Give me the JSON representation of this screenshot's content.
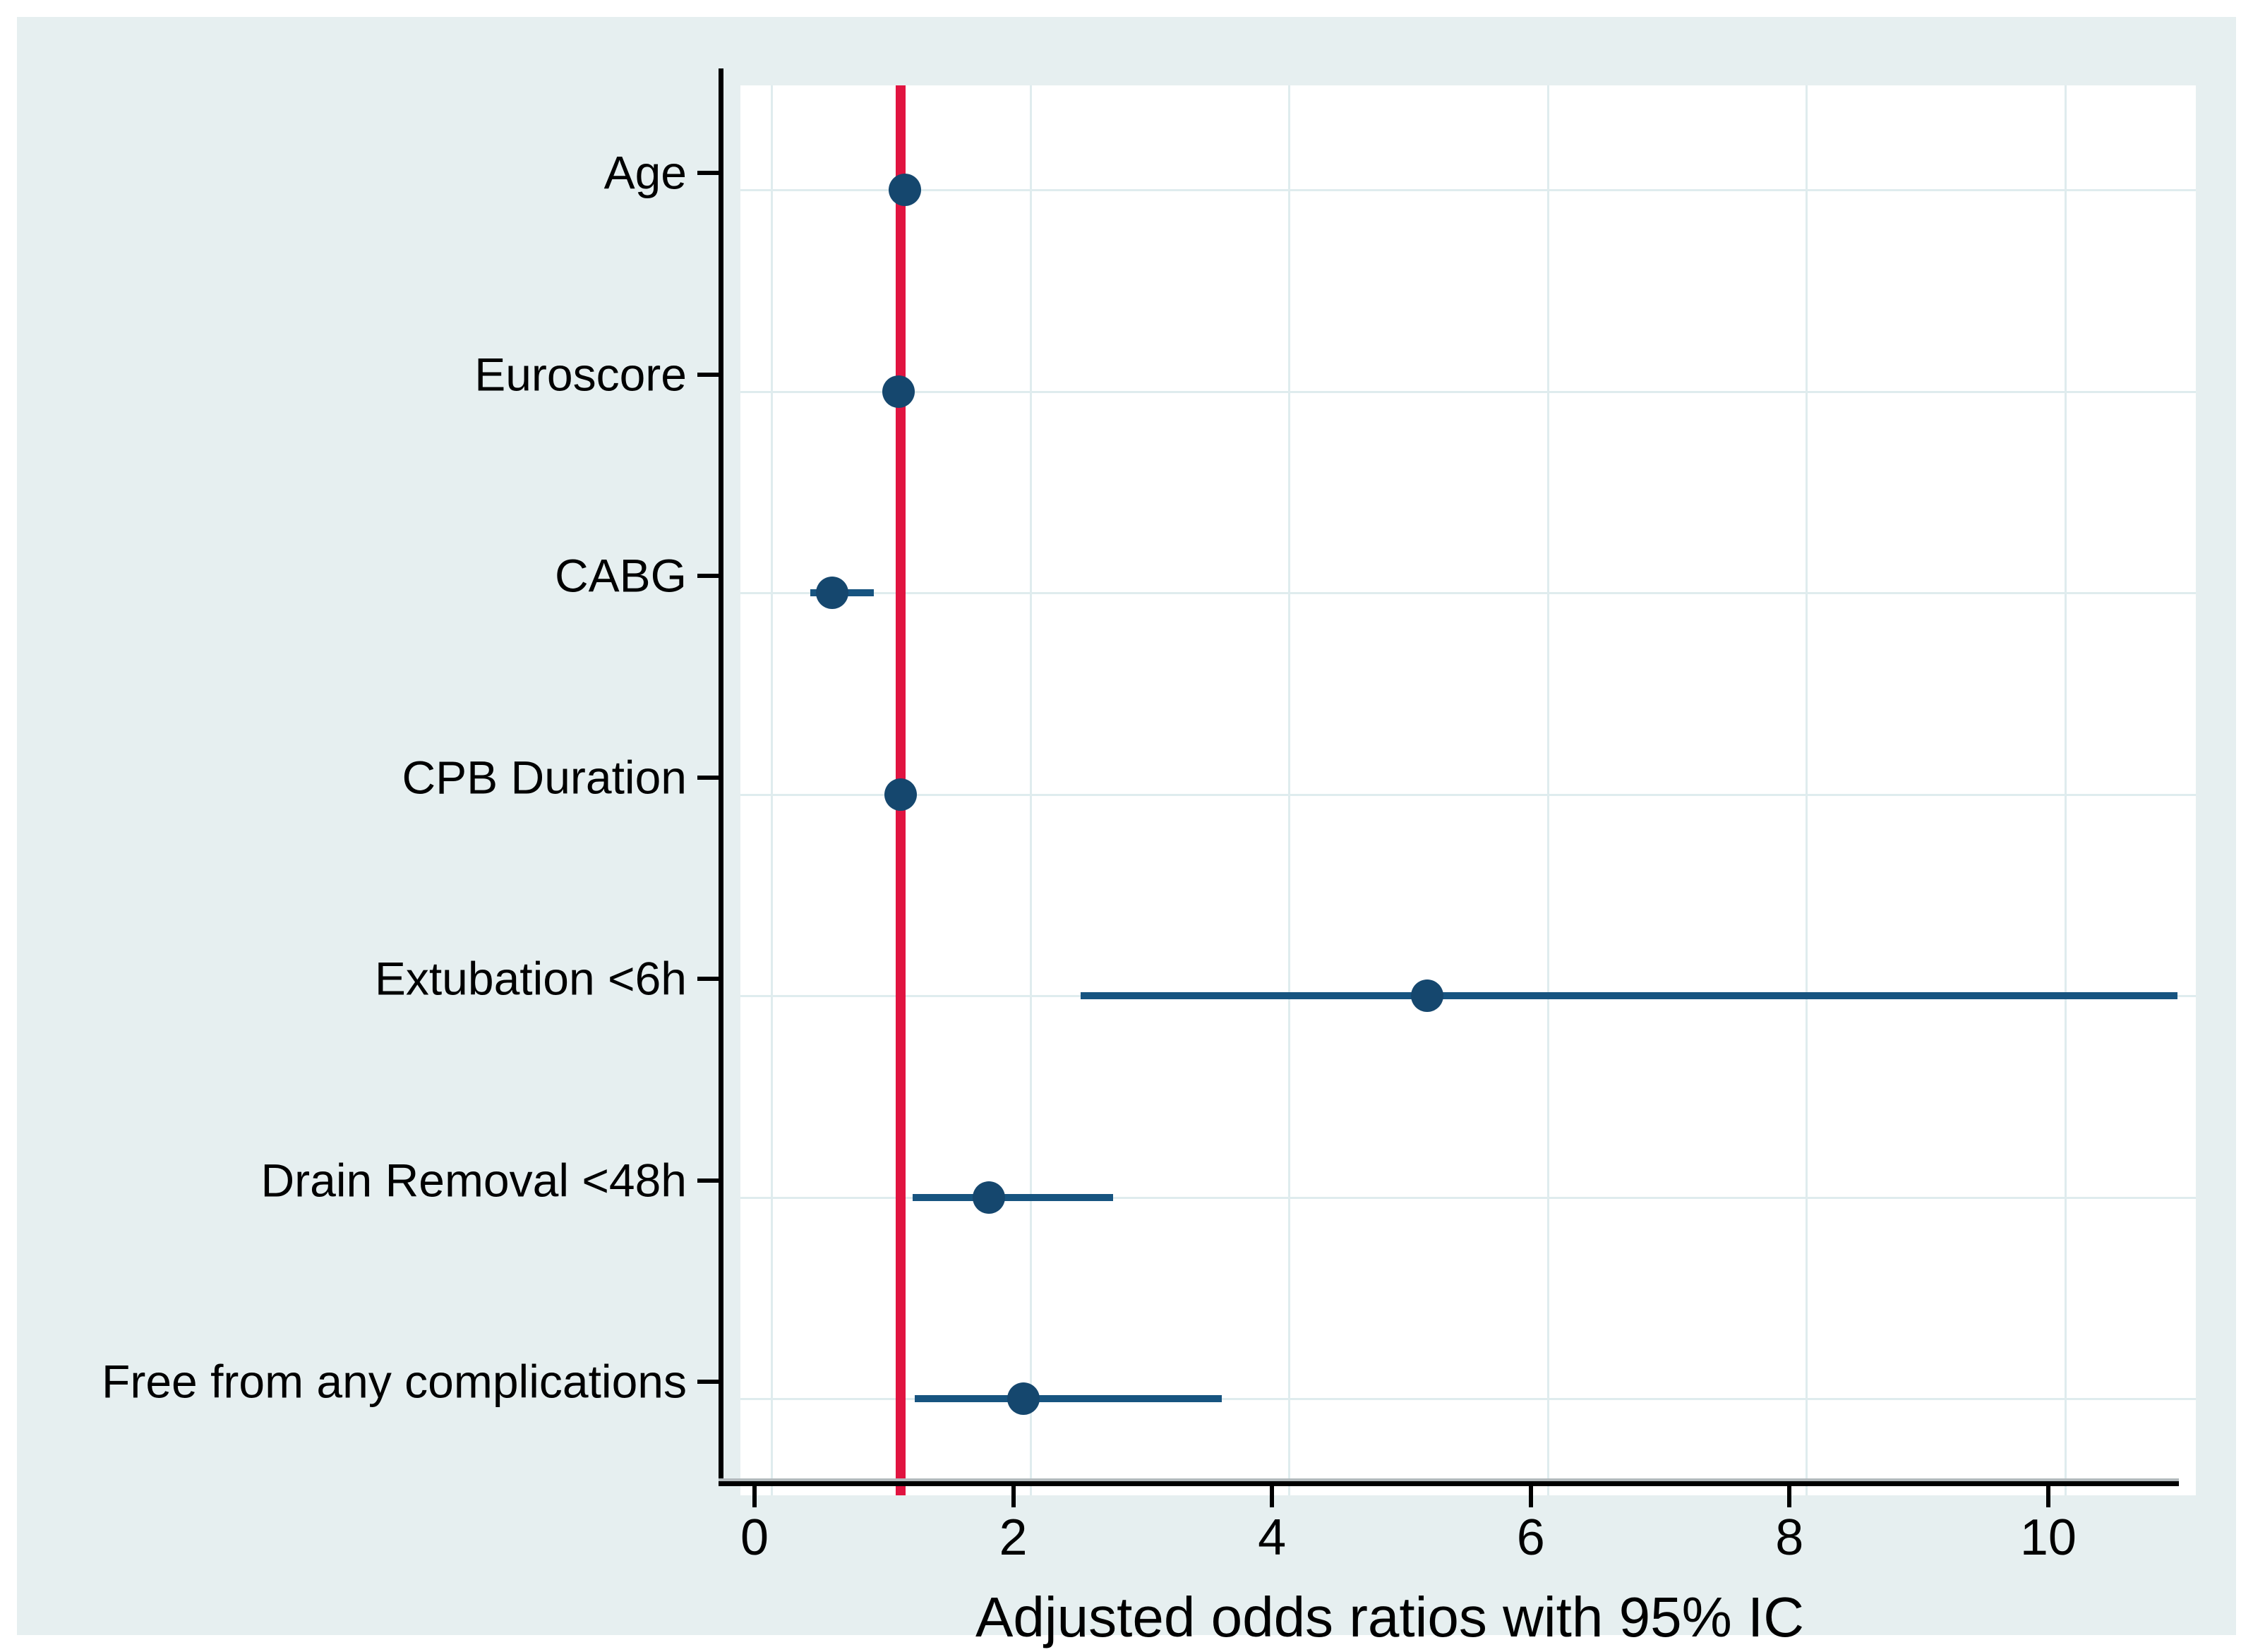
{
  "figure": {
    "description": "Forest plot of adjusted odds ratios with 95% confidence intervals, Stata-style graph"
  },
  "colors": {
    "page_background": "#ffffff",
    "canvas_background": "#e6eff0",
    "plot_background": "#ffffff",
    "gridline": "#dfecee",
    "axis_line": "#000000",
    "axis_shadow": "#b3babd",
    "marker": "#15476e",
    "ci_line": "#175480",
    "reference_line": "#e11440",
    "text": "#000000"
  },
  "chart_data": {
    "type": "scatter",
    "subtype": "forest-plot",
    "title": "",
    "xlabel": "Adjusted odds ratios with 95% IC",
    "ylabel": "",
    "x_ticks": [
      0,
      2,
      4,
      6,
      8,
      10
    ],
    "xlim": [
      -0.24,
      11.01
    ],
    "grid": true,
    "legend": "none",
    "reference_line_x": 1,
    "categories": [
      "Age",
      "Euroscore",
      "CABG",
      "CPB Duration",
      "Extubation <6h",
      "Drain Removal <48h",
      "Free from any complications"
    ],
    "points": [
      {
        "label": "Age",
        "or": 1.03,
        "ci_low": 0.99,
        "ci_high": 1.09,
        "ci_hidden_behind_marker": true
      },
      {
        "label": "Euroscore",
        "or": 0.98,
        "ci_low": 0.87,
        "ci_high": 1.1,
        "ci_hidden_behind_marker": true
      },
      {
        "label": "CABG",
        "or": 0.47,
        "ci_low": 0.3,
        "ci_high": 0.79,
        "ci_hidden_behind_marker": false
      },
      {
        "label": "CPB Duration",
        "or": 1.0,
        "ci_low": 0.88,
        "ci_high": 1.08,
        "ci_hidden_behind_marker": true
      },
      {
        "label": "Extubation <6h",
        "or": 5.07,
        "ci_low": 2.39,
        "ci_high": 10.87,
        "ci_hidden_behind_marker": false
      },
      {
        "label": "Drain Removal <48h",
        "or": 1.68,
        "ci_low": 1.09,
        "ci_high": 2.64,
        "ci_hidden_behind_marker": false
      },
      {
        "label": "Free from any complications",
        "or": 1.95,
        "ci_low": 1.11,
        "ci_high": 3.48,
        "ci_hidden_behind_marker": false
      }
    ]
  }
}
